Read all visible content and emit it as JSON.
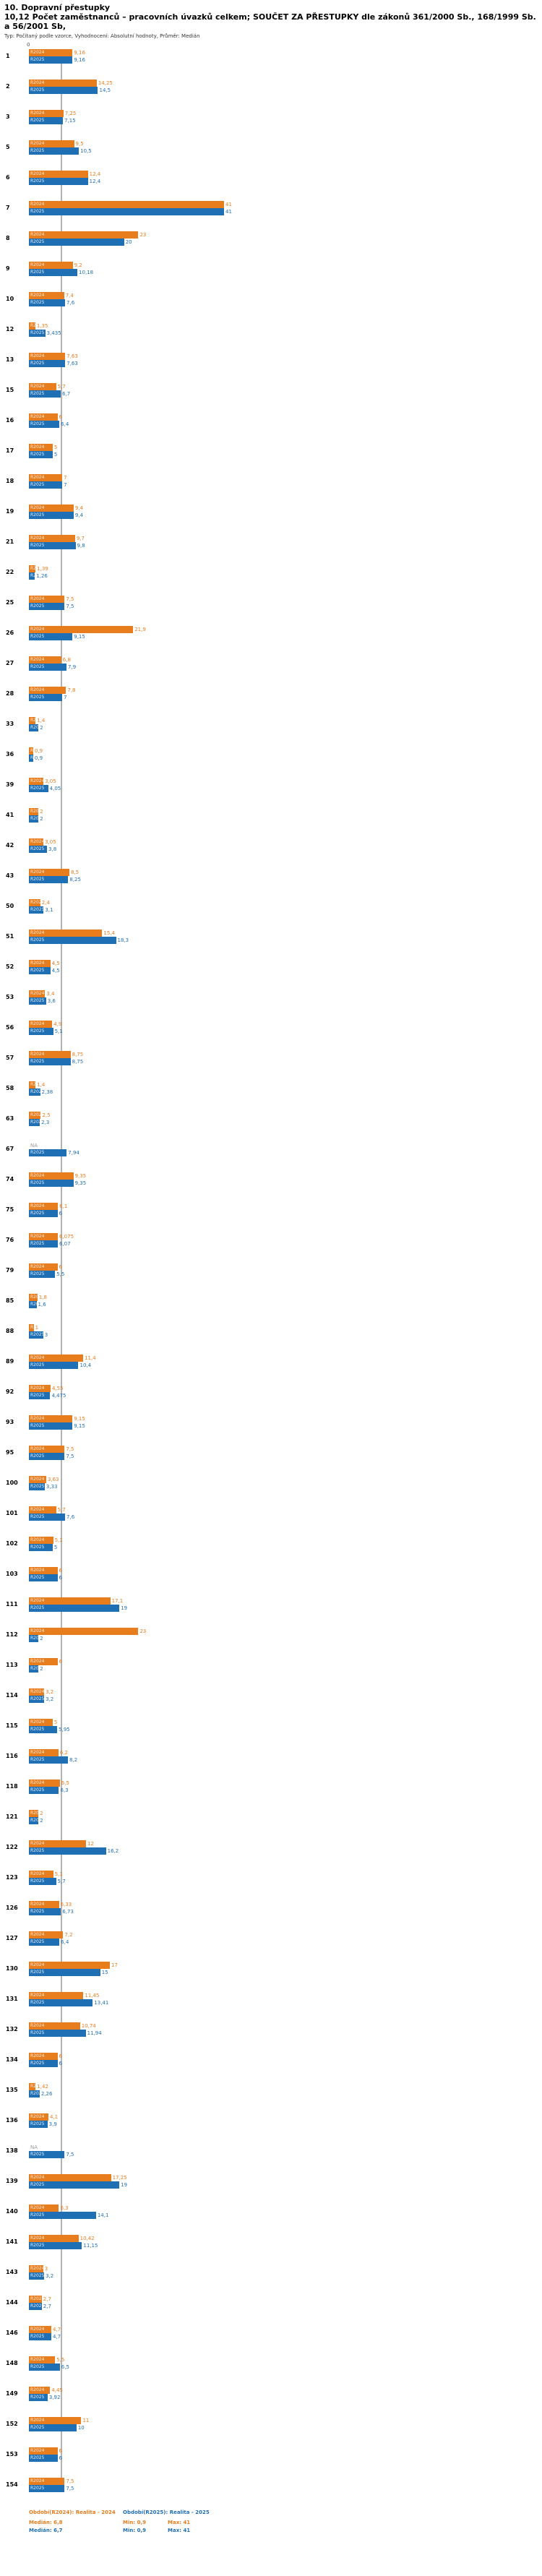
{
  "header": {
    "title": "10. Dopravní přestupky",
    "subtitle": "10,12 Počet zaměstnanců – pracovních úvazků celkem; SOUČET ZA PŘESTUPKY dle zákonů 361/2000 Sb., 168/1999 Sb. a 56/2001 Sb,",
    "meta": "Typ: Počítaný podle vzorce, Vyhodnocení: Absolutní hodnoty, Průměr: Medián"
  },
  "chart_data": {
    "type": "bar",
    "orientation": "horizontal",
    "title": "10,12 Počet zaměstnanců – pracovních úvazků celkem; SOUČET ZA PŘESTUPKY",
    "xlabel": "",
    "ylabel": "",
    "xlim": [
      0,
      41
    ],
    "axis_zero_label": "0",
    "na_label": "NA",
    "grid": false,
    "legend_position": "bottom",
    "series_labels": {
      "s2024": "R2024",
      "s2025": "R2025"
    },
    "colors": {
      "R2024": "#e87d1e",
      "R2025": "#1f6fb5"
    },
    "median_values": {
      "R2024": 6.8,
      "R2025": 6.7
    },
    "groups": [
      {
        "id": "1",
        "v2024": "9,16",
        "v2025": "9,16"
      },
      {
        "id": "2",
        "v2024": "14,25",
        "v2025": "14,5"
      },
      {
        "id": "3",
        "v2024": "7,25",
        "v2025": "7,15"
      },
      {
        "id": "5",
        "v2024": "9,5",
        "v2025": "10,5"
      },
      {
        "id": "6",
        "v2024": "12,4",
        "v2025": "12,4"
      },
      {
        "id": "7",
        "v2024": "41",
        "v2025": "41"
      },
      {
        "id": "8",
        "v2024": "23",
        "v2025": "20"
      },
      {
        "id": "9",
        "v2024": "9,2",
        "v2025": "10,18"
      },
      {
        "id": "10",
        "v2024": "7,4",
        "v2025": "7,6"
      },
      {
        "id": "12",
        "v2024": "1,35",
        "v2025": "3,435"
      },
      {
        "id": "13",
        "v2024": "7,63",
        "v2025": "7,63"
      },
      {
        "id": "15",
        "v2024": "5,7",
        "v2025": "6,7"
      },
      {
        "id": "16",
        "v2024": "6",
        "v2025": "6,4"
      },
      {
        "id": "17",
        "v2024": "5",
        "v2025": "5"
      },
      {
        "id": "18",
        "v2024": "7",
        "v2025": "7"
      },
      {
        "id": "19",
        "v2024": "9,4",
        "v2025": "9,4"
      },
      {
        "id": "21",
        "v2024": "9,7",
        "v2025": "9,8"
      },
      {
        "id": "22",
        "v2024": "1,39",
        "v2025": "1,26"
      },
      {
        "id": "25",
        "v2024": "7,5",
        "v2025": "7,5"
      },
      {
        "id": "26",
        "v2024": "21,9",
        "v2025": "9,15"
      },
      {
        "id": "27",
        "v2024": "6,8",
        "v2025": "7,9"
      },
      {
        "id": "28",
        "v2024": "7,8",
        "v2025": "7"
      },
      {
        "id": "33",
        "v2024": "1,4",
        "v2025": "2"
      },
      {
        "id": "36",
        "v2024": "0,9",
        "v2025": "0,9"
      },
      {
        "id": "39",
        "v2024": "3,05",
        "v2025": "4,05"
      },
      {
        "id": "41",
        "v2024": "2",
        "v2025": "2"
      },
      {
        "id": "42",
        "v2024": "3,05",
        "v2025": "3,8"
      },
      {
        "id": "43",
        "v2024": "8,5",
        "v2025": "8,25"
      },
      {
        "id": "50",
        "v2024": "2,4",
        "v2025": "3,1"
      },
      {
        "id": "51",
        "v2024": "15,4",
        "v2025": "18,3"
      },
      {
        "id": "52",
        "v2024": "4,5",
        "v2025": "4,5"
      },
      {
        "id": "53",
        "v2024": "3,4",
        "v2025": "3,6"
      },
      {
        "id": "56",
        "v2024": "4,9",
        "v2025": "5,1"
      },
      {
        "id": "57",
        "v2024": "8,75",
        "v2025": "8,75"
      },
      {
        "id": "58",
        "v2024": "1,4",
        "v2025": "2,38"
      },
      {
        "id": "63",
        "v2024": "2,5",
        "v2025": "2,3"
      },
      {
        "id": "67",
        "v2024": "NA",
        "v2025": "7,94"
      },
      {
        "id": "74",
        "v2024": "9,35",
        "v2025": "9,35"
      },
      {
        "id": "75",
        "v2024": "6,1",
        "v2025": "6"
      },
      {
        "id": "76",
        "v2024": "6,075",
        "v2025": "6,07"
      },
      {
        "id": "79",
        "v2024": "6",
        "v2025": "5,5"
      },
      {
        "id": "85",
        "v2024": "1,8",
        "v2025": "1,6"
      },
      {
        "id": "88",
        "v2024": "1",
        "v2025": "3"
      },
      {
        "id": "89",
        "v2024": "11,4",
        "v2025": "10,4"
      },
      {
        "id": "92",
        "v2024": "4,55",
        "v2025": "4,475"
      },
      {
        "id": "93",
        "v2024": "9,15",
        "v2025": "9,15"
      },
      {
        "id": "95",
        "v2024": "7,5",
        "v2025": "7,5"
      },
      {
        "id": "100",
        "v2024": "3,63",
        "v2025": "3,33"
      },
      {
        "id": "101",
        "v2024": "5,7",
        "v2025": "7,6"
      },
      {
        "id": "102",
        "v2024": "5,1",
        "v2025": "5"
      },
      {
        "id": "103",
        "v2024": "6",
        "v2025": "6"
      },
      {
        "id": "111",
        "v2024": "17,1",
        "v2025": "19"
      },
      {
        "id": "112",
        "v2024": "23",
        "v2025": "2"
      },
      {
        "id": "113",
        "v2024": "6",
        "v2025": "2"
      },
      {
        "id": "114",
        "v2024": "3,2",
        "v2025": "3,2"
      },
      {
        "id": "115",
        "v2024": "5",
        "v2025": "5,95"
      },
      {
        "id": "116",
        "v2024": "6,2",
        "v2025": "8,2"
      },
      {
        "id": "118",
        "v2024": "6,5",
        "v2025": "6,3"
      },
      {
        "id": "121",
        "v2024": "2",
        "v2025": "2"
      },
      {
        "id": "122",
        "v2024": "12",
        "v2025": "16,2"
      },
      {
        "id": "123",
        "v2024": "5,1",
        "v2025": "5,7"
      },
      {
        "id": "126",
        "v2024": "6,33",
        "v2025": "6,73"
      },
      {
        "id": "127",
        "v2024": "7,2",
        "v2025": "6,4"
      },
      {
        "id": "130",
        "v2024": "17",
        "v2025": "15"
      },
      {
        "id": "131",
        "v2024": "11,45",
        "v2025": "13,41"
      },
      {
        "id": "132",
        "v2024": "10,74",
        "v2025": "11,94"
      },
      {
        "id": "134",
        "v2024": "6",
        "v2025": "6"
      },
      {
        "id": "135",
        "v2024": "1,42",
        "v2025": "2,26"
      },
      {
        "id": "136",
        "v2024": "4,1",
        "v2025": "3,9"
      },
      {
        "id": "138",
        "v2024": "NA",
        "v2025": "7,5"
      },
      {
        "id": "139",
        "v2024": "17,25",
        "v2025": "19"
      },
      {
        "id": "140",
        "v2024": "6,3",
        "v2025": "14,1"
      },
      {
        "id": "141",
        "v2024": "10,42",
        "v2025": "11,15"
      },
      {
        "id": "143",
        "v2024": "3",
        "v2025": "3,2"
      },
      {
        "id": "144",
        "v2024": "2,7",
        "v2025": "2,7"
      },
      {
        "id": "146",
        "v2024": "4,7",
        "v2025": "4,7"
      },
      {
        "id": "148",
        "v2024": "5,5",
        "v2025": "6,5"
      },
      {
        "id": "149",
        "v2024": "4,45",
        "v2025": "3,92"
      },
      {
        "id": "152",
        "v2024": "11",
        "v2025": "10"
      },
      {
        "id": "153",
        "v2024": "6",
        "v2025": "6"
      },
      {
        "id": "154",
        "v2024": "7,5",
        "v2025": "7,5"
      }
    ]
  },
  "legend": {
    "series_2024": {
      "title": "Období(R2024): Realita - 2024",
      "median": "Medián: 6,8",
      "min": "Min: 0,9",
      "max": "Max: 41"
    },
    "series_2025": {
      "title": "Období(R2025): Realita - 2025",
      "median": "Medián: 6,7",
      "min": "Min: 0,9",
      "max": "Max: 41"
    }
  }
}
